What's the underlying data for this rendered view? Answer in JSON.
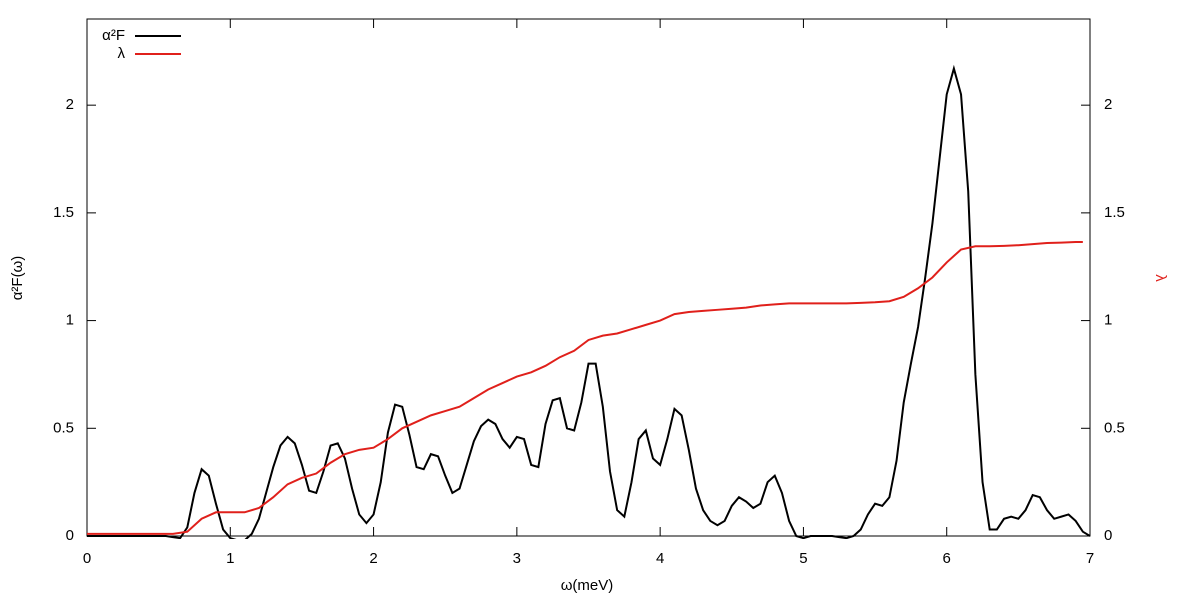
{
  "chart_data": {
    "type": "line",
    "xlabel": "ω(meV)",
    "ylabel": "α²F(ω)",
    "y2label": "λ",
    "xlim": [
      0,
      7
    ],
    "xticks": [
      0,
      1,
      2,
      3,
      4,
      5,
      6,
      7
    ],
    "ylim": [
      0,
      2.4
    ],
    "yticks": [
      0,
      0.5,
      1,
      1.5,
      2
    ],
    "y2lim": [
      0,
      2.4
    ],
    "y2ticks": [
      0,
      0.5,
      1,
      1.5,
      2
    ],
    "legend": "top-left",
    "grid": false,
    "series": [
      {
        "name": "α²F",
        "color": "#000000",
        "x": [
          0,
          0.05,
          0.1,
          0.15,
          0.2,
          0.25,
          0.3,
          0.35,
          0.4,
          0.45,
          0.5,
          0.55,
          0.6,
          0.65,
          0.7,
          0.75,
          0.8,
          0.85,
          0.9,
          0.95,
          1,
          1.05,
          1.1,
          1.15,
          1.2,
          1.25,
          1.3,
          1.35,
          1.4,
          1.45,
          1.5,
          1.55,
          1.6,
          1.65,
          1.7,
          1.75,
          1.8,
          1.85,
          1.9,
          1.95,
          2,
          2.05,
          2.1,
          2.15,
          2.2,
          2.25,
          2.3,
          2.35,
          2.4,
          2.45,
          2.5,
          2.55,
          2.6,
          2.65,
          2.7,
          2.75,
          2.8,
          2.85,
          2.9,
          2.95,
          3,
          3.05,
          3.1,
          3.15,
          3.2,
          3.25,
          3.3,
          3.35,
          3.4,
          3.45,
          3.5,
          3.55,
          3.6,
          3.65,
          3.7,
          3.75,
          3.8,
          3.85,
          3.9,
          3.95,
          4,
          4.05,
          4.1,
          4.15,
          4.2,
          4.25,
          4.3,
          4.35,
          4.4,
          4.45,
          4.5,
          4.55,
          4.6,
          4.65,
          4.7,
          4.75,
          4.8,
          4.85,
          4.9,
          4.95,
          5,
          5.05,
          5.1,
          5.15,
          5.2,
          5.25,
          5.3,
          5.35,
          5.4,
          5.45,
          5.5,
          5.55,
          5.6,
          5.65,
          5.7,
          5.75,
          5.8,
          5.85,
          5.9,
          5.95,
          6,
          6.05,
          6.1,
          6.15,
          6.2,
          6.25,
          6.3,
          6.35,
          6.4,
          6.45,
          6.5,
          6.55,
          6.6,
          6.65,
          6.7,
          6.75,
          6.8,
          6.85,
          6.9,
          6.95,
          7
        ],
        "values": [
          0,
          0,
          0,
          0,
          0,
          0,
          0,
          0,
          0,
          0,
          0,
          0,
          -0.005,
          -0.01,
          0.04,
          0.2,
          0.31,
          0.28,
          0.15,
          0.03,
          -0.01,
          -0.02,
          -0.02,
          0.01,
          0.08,
          0.2,
          0.32,
          0.42,
          0.46,
          0.43,
          0.33,
          0.21,
          0.2,
          0.3,
          0.42,
          0.43,
          0.36,
          0.22,
          0.1,
          0.06,
          0.1,
          0.25,
          0.48,
          0.61,
          0.6,
          0.47,
          0.32,
          0.31,
          0.38,
          0.37,
          0.28,
          0.2,
          0.22,
          0.33,
          0.44,
          0.51,
          0.54,
          0.52,
          0.45,
          0.41,
          0.46,
          0.45,
          0.33,
          0.32,
          0.52,
          0.63,
          0.64,
          0.5,
          0.49,
          0.62,
          0.8,
          0.8,
          0.6,
          0.3,
          0.12,
          0.09,
          0.25,
          0.45,
          0.49,
          0.36,
          0.33,
          0.45,
          0.59,
          0.56,
          0.4,
          0.22,
          0.12,
          0.07,
          0.05,
          0.07,
          0.14,
          0.18,
          0.16,
          0.13,
          0.15,
          0.25,
          0.28,
          0.2,
          0.07,
          0,
          -0.01,
          0,
          0,
          0,
          0,
          -0.005,
          -0.01,
          0,
          0.03,
          0.1,
          0.15,
          0.14,
          0.18,
          0.35,
          0.62,
          0.8,
          0.97,
          1.2,
          1.45,
          1.75,
          2.05,
          2.17,
          2.05,
          1.6,
          0.75,
          0.25,
          0.03,
          0.03,
          0.08,
          0.09,
          0.08,
          0.12,
          0.19,
          0.18,
          0.12,
          0.08,
          0.09,
          0.1,
          0.07,
          0.02,
          0
        ]
      },
      {
        "name": "λ",
        "color": "#e0201b",
        "axis": "y2",
        "x": [
          0,
          0.1,
          0.2,
          0.3,
          0.4,
          0.5,
          0.6,
          0.7,
          0.8,
          0.9,
          1,
          1.1,
          1.2,
          1.3,
          1.4,
          1.5,
          1.6,
          1.7,
          1.8,
          1.9,
          2,
          2.1,
          2.2,
          2.3,
          2.4,
          2.5,
          2.6,
          2.7,
          2.8,
          2.9,
          3,
          3.1,
          3.2,
          3.3,
          3.4,
          3.5,
          3.6,
          3.7,
          3.8,
          3.9,
          4,
          4.1,
          4.2,
          4.3,
          4.4,
          4.5,
          4.6,
          4.7,
          4.8,
          4.9,
          5,
          5.1,
          5.2,
          5.3,
          5.4,
          5.5,
          5.6,
          5.7,
          5.8,
          5.9,
          6,
          6.1,
          6.2,
          6.3,
          6.4,
          6.5,
          6.6,
          6.7,
          6.8,
          6.9,
          6.95
        ],
        "values": [
          0.01,
          0.01,
          0.01,
          0.01,
          0.01,
          0.01,
          0.01,
          0.02,
          0.08,
          0.11,
          0.11,
          0.11,
          0.13,
          0.18,
          0.24,
          0.27,
          0.29,
          0.34,
          0.38,
          0.4,
          0.41,
          0.45,
          0.5,
          0.53,
          0.56,
          0.58,
          0.6,
          0.64,
          0.68,
          0.71,
          0.74,
          0.76,
          0.79,
          0.83,
          0.86,
          0.91,
          0.93,
          0.94,
          0.96,
          0.98,
          1,
          1.03,
          1.04,
          1.045,
          1.05,
          1.055,
          1.06,
          1.07,
          1.075,
          1.08,
          1.08,
          1.08,
          1.08,
          1.08,
          1.082,
          1.085,
          1.09,
          1.11,
          1.15,
          1.2,
          1.27,
          1.33,
          1.345,
          1.345,
          1.347,
          1.35,
          1.355,
          1.36,
          1.362,
          1.365,
          1.365
        ]
      }
    ]
  }
}
